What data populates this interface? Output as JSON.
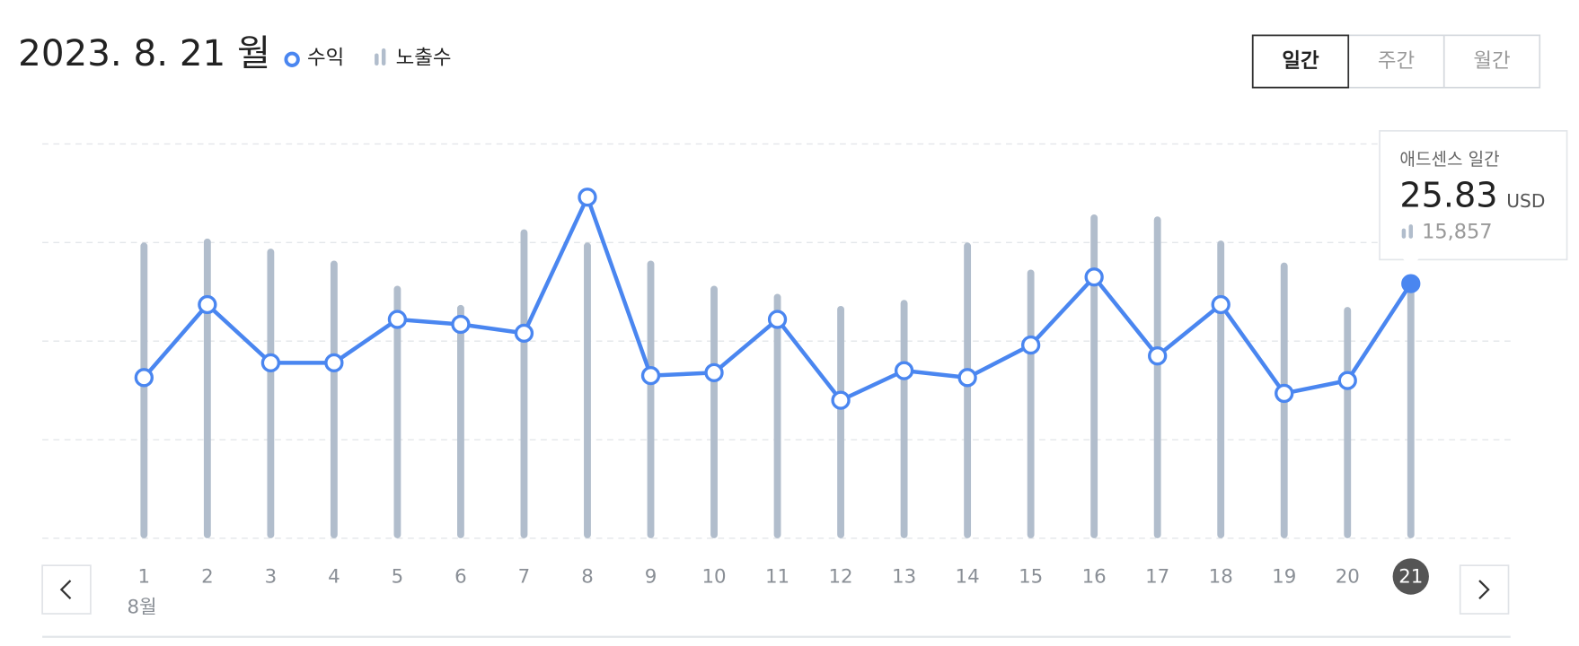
{
  "header": {
    "date": "2023. 8. 21 월"
  },
  "tabs": [
    {
      "label": "일간",
      "active": true
    },
    {
      "label": "주간",
      "active": false
    },
    {
      "label": "월간",
      "active": false
    }
  ],
  "tooltip": {
    "title": "애드센스 일간",
    "unit": "USD",
    "impressions": "15,857"
  },
  "chart_data": {
    "type": "combo",
    "categories": [
      "1",
      "2",
      "3",
      "4",
      "5",
      "6",
      "7",
      "8",
      "9",
      "10",
      "11",
      "12",
      "13",
      "14",
      "15",
      "16",
      "17",
      "18",
      "19",
      "20",
      "21"
    ],
    "month_label": "8월",
    "ylim": [
      0,
      40
    ],
    "yticks": [
      0,
      10,
      20,
      30,
      40
    ],
    "y2lim": [
      0,
      24000
    ],
    "grid": true,
    "series": [
      {
        "name": "수익",
        "type": "line",
        "color": "#4a86f0",
        "values": [
          16.3,
          23.7,
          17.8,
          17.8,
          22.2,
          21.7,
          20.8,
          34.6,
          16.5,
          16.8,
          22.2,
          14.0,
          17.0,
          16.3,
          19.6,
          26.5,
          18.5,
          23.7,
          14.7,
          16.0,
          25.83
        ]
      },
      {
        "name": "노출수",
        "type": "bar",
        "axis": "y2",
        "color": "#b1bdcc",
        "values": [
          18000,
          18245,
          17630,
          16900,
          15370,
          14200,
          18800,
          18000,
          16900,
          15370,
          14880,
          14140,
          14510,
          18000,
          16350,
          19710,
          19590,
          18120,
          16780,
          14080,
          15857
        ]
      }
    ]
  }
}
